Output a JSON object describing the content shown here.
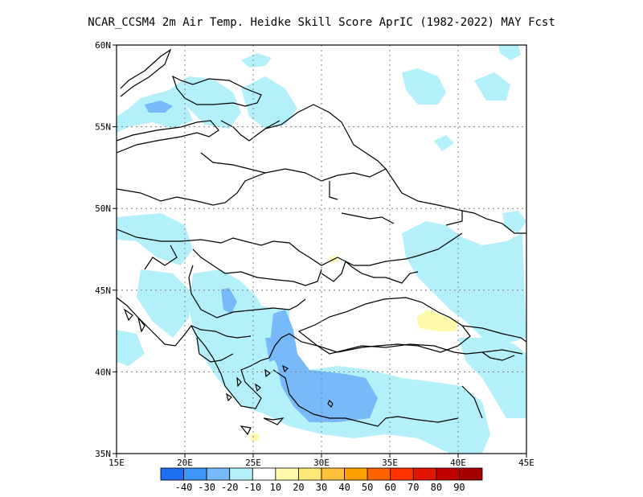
{
  "title": "NCAR_CCSM4  2m Air Temp. Heidke Skill Score AprIC (1982-2022) MAY Fcst",
  "map": {
    "lon_range": [
      15,
      45
    ],
    "lat_range": [
      35,
      60
    ],
    "lon_ticks": [
      {
        "value": 15,
        "label": "15E"
      },
      {
        "value": 20,
        "label": "20E"
      },
      {
        "value": 25,
        "label": "25E"
      },
      {
        "value": 30,
        "label": "30E"
      },
      {
        "value": 35,
        "label": "35E"
      },
      {
        "value": 40,
        "label": "40E"
      },
      {
        "value": 45,
        "label": "45E"
      }
    ],
    "lat_ticks": [
      {
        "value": 35,
        "label": "35N"
      },
      {
        "value": 40,
        "label": "40N"
      },
      {
        "value": 45,
        "label": "45N"
      },
      {
        "value": 50,
        "label": "50N"
      },
      {
        "value": 55,
        "label": "55N"
      },
      {
        "value": 60,
        "label": "60N"
      }
    ],
    "grid": "dotted"
  },
  "colorbar": {
    "colors": [
      "#1e6ff0",
      "#3c96f5",
      "#78b9fa",
      "#b4f0fa",
      "#ffffff",
      "#fffaaa",
      "#ffe878",
      "#ffc03c",
      "#ffa000",
      "#ff6000",
      "#ff3200",
      "#e11400",
      "#c00000",
      "#a50000"
    ],
    "labels": [
      "-40",
      "-30",
      "-20",
      "-10",
      "10",
      "20",
      "30",
      "40",
      "50",
      "60",
      "70",
      "80",
      "90"
    ]
  },
  "colors": {
    "light_negative": "#b4f0fa",
    "medium_negative": "#78b9fa",
    "strong_negative": "#3c96f5",
    "light_positive": "#fffaaa",
    "border": "#000000"
  }
}
